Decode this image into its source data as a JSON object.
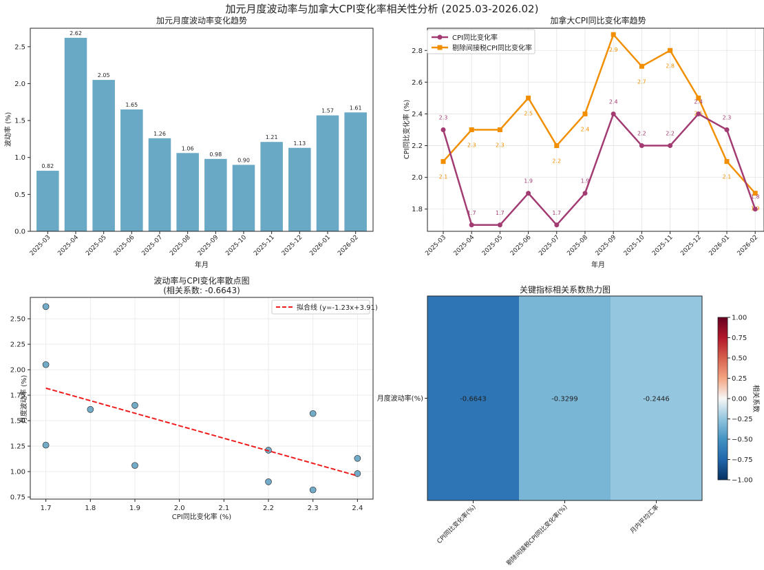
{
  "figure": {
    "title": "加元月度波动率与加拿大CPI变化率相关性分析 (2025.03-2026.02)"
  },
  "colors": {
    "bar": "#6aa9c5",
    "cpi": "#a23b72",
    "core": "#f18f01",
    "scatter": "#5b9ec0",
    "fit": "#ee1c1c"
  },
  "chart_data": [
    {
      "type": "bar",
      "title": "加元月度波动率变化趋势",
      "xlabel": "年月",
      "ylabel": "波动率 (%)",
      "categories": [
        "2025-03",
        "2025-04",
        "2025-05",
        "2025-06",
        "2025-07",
        "2025-08",
        "2025-09",
        "2025-10",
        "2025-11",
        "2025-12",
        "2026-01",
        "2026-02"
      ],
      "values": [
        0.82,
        2.62,
        2.05,
        1.65,
        1.26,
        1.06,
        0.98,
        0.9,
        1.21,
        1.13,
        1.57,
        1.61
      ],
      "value_labels": [
        "0.82",
        "2.62",
        "2.05",
        "1.65",
        "1.26",
        "1.06",
        "0.98",
        "0.90",
        "1.21",
        "1.13",
        "1.57",
        "1.61"
      ],
      "ylim": [
        0,
        2.75
      ],
      "yticks": [
        0.0,
        0.5,
        1.0,
        1.5,
        2.0,
        2.5
      ],
      "ytick_labels": [
        "0.0",
        "0.5",
        "1.0",
        "1.5",
        "2.0",
        "2.5"
      ]
    },
    {
      "type": "line",
      "title": "加拿大CPI同比变化率趋势",
      "xlabel": "年月",
      "ylabel": "CPI同比变化率 (%)",
      "categories": [
        "2025-03",
        "2025-04",
        "2025-05",
        "2025-06",
        "2025-07",
        "2025-08",
        "2025-09",
        "2025-10",
        "2025-11",
        "2025-12",
        "2026-01",
        "2026-02"
      ],
      "series": [
        {
          "name": "CPI同比变化率",
          "values": [
            2.3,
            1.7,
            1.7,
            1.9,
            1.7,
            1.9,
            2.4,
            2.2,
            2.2,
            2.4,
            2.3,
            1.8
          ],
          "labels": [
            "2.3",
            "1.7",
            "1.7",
            "1.9",
            "1.7",
            "1.9",
            "2.4",
            "2.2",
            "2.2",
            "2.4",
            "2.3",
            "1.8"
          ]
        },
        {
          "name": "剔除间接税CPI同比变化率",
          "values": [
            2.1,
            2.3,
            2.3,
            2.5,
            2.2,
            2.4,
            2.9,
            2.7,
            2.8,
            2.5,
            2.1,
            1.9
          ],
          "labels": [
            "2.1",
            "2.3",
            "2.3",
            "2.5",
            "2.2",
            "2.4",
            "2.9",
            "2.7",
            "2.8",
            "2.5",
            "2.1",
            "1.9"
          ]
        }
      ],
      "ylim": [
        1.66,
        2.94
      ],
      "yticks": [
        1.8,
        2.0,
        2.2,
        2.4,
        2.6,
        2.8
      ],
      "ytick_labels": [
        "1.8",
        "2.0",
        "2.2",
        "2.4",
        "2.6",
        "2.8"
      ],
      "legend": "top-left"
    },
    {
      "type": "scatter",
      "title": "波动率与CPI变化率散点图",
      "subtitle": "(相关系数: -0.6643)",
      "xlabel": "CPI同比变化率 (%)",
      "ylabel": "月度波动率 (%)",
      "x": [
        2.3,
        1.7,
        1.7,
        1.9,
        1.7,
        1.9,
        2.4,
        2.2,
        2.2,
        2.4,
        2.3,
        1.8
      ],
      "y": [
        0.82,
        2.62,
        2.05,
        1.65,
        1.26,
        1.06,
        0.98,
        0.9,
        1.21,
        1.13,
        1.57,
        1.61
      ],
      "fit": {
        "label": "拟合线 (y=-1.23x+3.91)",
        "slope": -1.23,
        "intercept": 3.91,
        "x_range": [
          1.7,
          2.4
        ]
      },
      "xlim": [
        1.665,
        2.435
      ],
      "ylim": [
        0.73,
        2.71
      ],
      "xticks": [
        1.7,
        1.8,
        1.9,
        2.0,
        2.1,
        2.2,
        2.3,
        2.4
      ],
      "xtick_labels": [
        "1.7",
        "1.8",
        "1.9",
        "2.0",
        "2.1",
        "2.2",
        "2.3",
        "2.4"
      ],
      "yticks": [
        0.75,
        1.0,
        1.25,
        1.5,
        1.75,
        2.0,
        2.25,
        2.5
      ],
      "ytick_labels": [
        "0.75",
        "1.00",
        "1.25",
        "1.50",
        "1.75",
        "2.00",
        "2.25",
        "2.50"
      ],
      "legend": "top-right"
    },
    {
      "type": "heatmap",
      "title": "关键指标相关系数热力图",
      "row_labels": [
        "月度波动率(%)"
      ],
      "col_labels": [
        "CPI同比变化率(%)",
        "剔除间接税CPI同比变化率(%)",
        "月内平均汇率"
      ],
      "values": [
        [
          -0.6643,
          -0.3299,
          -0.2446
        ]
      ],
      "value_labels": [
        "-0.6643",
        "-0.3299",
        "-0.2446"
      ],
      "colorbar": {
        "label": "相关系数",
        "range": [
          -1,
          1
        ],
        "ticks": [
          1.0,
          0.75,
          0.5,
          0.25,
          0.0,
          -0.25,
          -0.5,
          -0.75,
          -1.0
        ],
        "tick_labels": [
          "1.00",
          "0.75",
          "0.50",
          "0.25",
          "0.00",
          "−0.25",
          "−0.50",
          "−0.75",
          "−1.00"
        ]
      }
    }
  ]
}
